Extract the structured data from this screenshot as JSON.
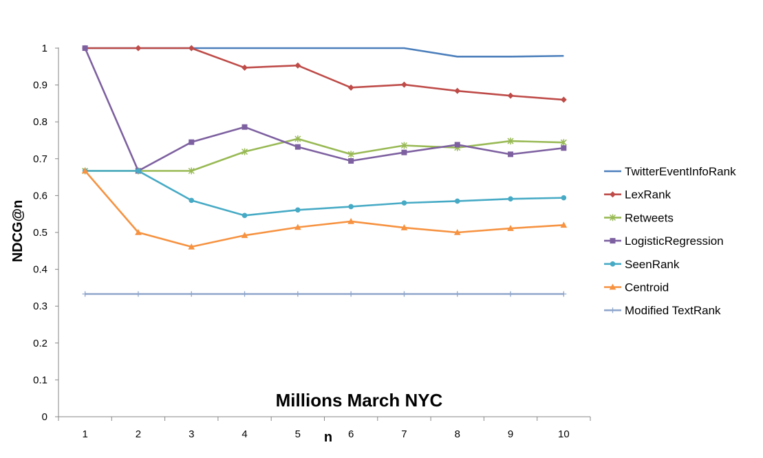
{
  "chart_data": {
    "type": "line",
    "title": "Millions March NYC",
    "xlabel": "n",
    "ylabel": "NDCG@n",
    "x": [
      "1",
      "2",
      "3",
      "4",
      "5",
      "6",
      "7",
      "8",
      "9",
      "10"
    ],
    "y_ticks": [
      "0",
      "0.1",
      "0.2",
      "0.3",
      "0.4",
      "0.5",
      "0.6",
      "0.7",
      "0.8",
      "0.9",
      "1"
    ],
    "ylim": [
      0,
      1
    ],
    "grid": false,
    "legend_position": "right",
    "series": [
      {
        "name": "TwitterEventInfoRank",
        "color": "#4a7ebb",
        "marker": "none",
        "values": [
          1,
          1,
          1,
          1,
          1,
          1,
          1,
          0.977,
          0.977,
          0.979
        ]
      },
      {
        "name": "LexRank",
        "color": "#be4b48",
        "marker": "diamond",
        "values": [
          1,
          1,
          1,
          0.947,
          0.953,
          0.893,
          0.901,
          0.884,
          0.871,
          0.86
        ]
      },
      {
        "name": "Retweets",
        "color": "#98b954",
        "marker": "star",
        "values": [
          0.667,
          0.667,
          0.667,
          0.719,
          0.754,
          0.712,
          0.736,
          0.73,
          0.748,
          0.744
        ]
      },
      {
        "name": "LogisticRegression",
        "color": "#7d60a0",
        "marker": "square",
        "values": [
          1,
          0.667,
          0.745,
          0.786,
          0.732,
          0.694,
          0.717,
          0.738,
          0.712,
          0.729
        ]
      },
      {
        "name": "SeenRank",
        "color": "#46aac5",
        "marker": "circle",
        "values": [
          0.667,
          0.667,
          0.587,
          0.546,
          0.561,
          0.57,
          0.58,
          0.585,
          0.591,
          0.594
        ]
      },
      {
        "name": "Centroid",
        "color": "#f69240",
        "marker": "triangle",
        "values": [
          0.667,
          0.5,
          0.461,
          0.492,
          0.514,
          0.53,
          0.513,
          0.5,
          0.511,
          0.52
        ]
      },
      {
        "name": "Modified TextRank",
        "color": "#8ea5cb",
        "marker": "plus",
        "values": [
          0.333,
          0.333,
          0.333,
          0.333,
          0.333,
          0.333,
          0.333,
          0.333,
          0.333,
          0.333
        ]
      }
    ]
  }
}
